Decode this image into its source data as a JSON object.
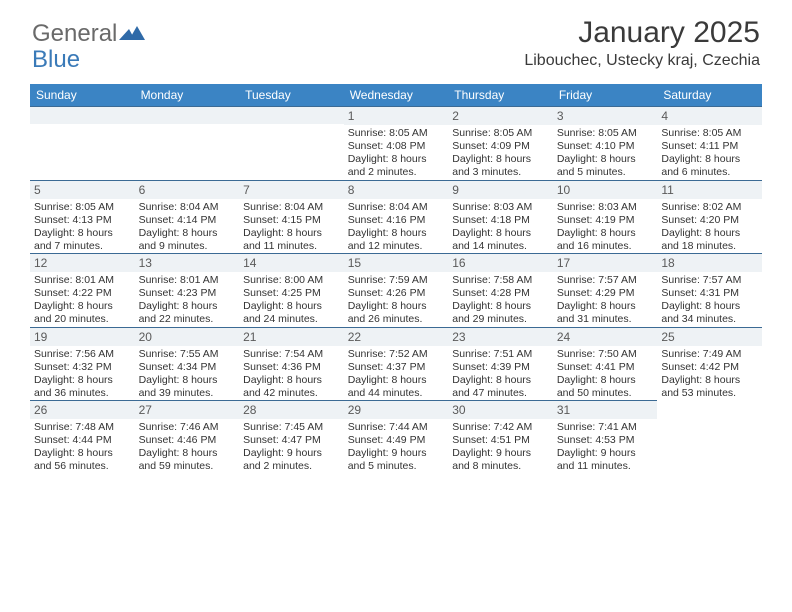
{
  "brand": {
    "part1": "General",
    "part2": "Blue"
  },
  "title": "January 2025",
  "location": "Libouchec, Ustecky kraj, Czechia",
  "colors": {
    "header_bg": "#3b84c4",
    "header_text": "#ffffff",
    "daybar_bg": "#eef2f5",
    "daybar_border": "#3b6a94",
    "body_text": "#333333",
    "logo_gray": "#6a6a6a",
    "logo_blue": "#3a7ab8"
  },
  "weekdays": [
    "Sunday",
    "Monday",
    "Tuesday",
    "Wednesday",
    "Thursday",
    "Friday",
    "Saturday"
  ],
  "weeks": [
    [
      null,
      null,
      null,
      {
        "n": "1",
        "sr": "8:05 AM",
        "ss": "4:08 PM",
        "dl": "8 hours and 2 minutes."
      },
      {
        "n": "2",
        "sr": "8:05 AM",
        "ss": "4:09 PM",
        "dl": "8 hours and 3 minutes."
      },
      {
        "n": "3",
        "sr": "8:05 AM",
        "ss": "4:10 PM",
        "dl": "8 hours and 5 minutes."
      },
      {
        "n": "4",
        "sr": "8:05 AM",
        "ss": "4:11 PM",
        "dl": "8 hours and 6 minutes."
      }
    ],
    [
      {
        "n": "5",
        "sr": "8:05 AM",
        "ss": "4:13 PM",
        "dl": "8 hours and 7 minutes."
      },
      {
        "n": "6",
        "sr": "8:04 AM",
        "ss": "4:14 PM",
        "dl": "8 hours and 9 minutes."
      },
      {
        "n": "7",
        "sr": "8:04 AM",
        "ss": "4:15 PM",
        "dl": "8 hours and 11 minutes."
      },
      {
        "n": "8",
        "sr": "8:04 AM",
        "ss": "4:16 PM",
        "dl": "8 hours and 12 minutes."
      },
      {
        "n": "9",
        "sr": "8:03 AM",
        "ss": "4:18 PM",
        "dl": "8 hours and 14 minutes."
      },
      {
        "n": "10",
        "sr": "8:03 AM",
        "ss": "4:19 PM",
        "dl": "8 hours and 16 minutes."
      },
      {
        "n": "11",
        "sr": "8:02 AM",
        "ss": "4:20 PM",
        "dl": "8 hours and 18 minutes."
      }
    ],
    [
      {
        "n": "12",
        "sr": "8:01 AM",
        "ss": "4:22 PM",
        "dl": "8 hours and 20 minutes."
      },
      {
        "n": "13",
        "sr": "8:01 AM",
        "ss": "4:23 PM",
        "dl": "8 hours and 22 minutes."
      },
      {
        "n": "14",
        "sr": "8:00 AM",
        "ss": "4:25 PM",
        "dl": "8 hours and 24 minutes."
      },
      {
        "n": "15",
        "sr": "7:59 AM",
        "ss": "4:26 PM",
        "dl": "8 hours and 26 minutes."
      },
      {
        "n": "16",
        "sr": "7:58 AM",
        "ss": "4:28 PM",
        "dl": "8 hours and 29 minutes."
      },
      {
        "n": "17",
        "sr": "7:57 AM",
        "ss": "4:29 PM",
        "dl": "8 hours and 31 minutes."
      },
      {
        "n": "18",
        "sr": "7:57 AM",
        "ss": "4:31 PM",
        "dl": "8 hours and 34 minutes."
      }
    ],
    [
      {
        "n": "19",
        "sr": "7:56 AM",
        "ss": "4:32 PM",
        "dl": "8 hours and 36 minutes."
      },
      {
        "n": "20",
        "sr": "7:55 AM",
        "ss": "4:34 PM",
        "dl": "8 hours and 39 minutes."
      },
      {
        "n": "21",
        "sr": "7:54 AM",
        "ss": "4:36 PM",
        "dl": "8 hours and 42 minutes."
      },
      {
        "n": "22",
        "sr": "7:52 AM",
        "ss": "4:37 PM",
        "dl": "8 hours and 44 minutes."
      },
      {
        "n": "23",
        "sr": "7:51 AM",
        "ss": "4:39 PM",
        "dl": "8 hours and 47 minutes."
      },
      {
        "n": "24",
        "sr": "7:50 AM",
        "ss": "4:41 PM",
        "dl": "8 hours and 50 minutes."
      },
      {
        "n": "25",
        "sr": "7:49 AM",
        "ss": "4:42 PM",
        "dl": "8 hours and 53 minutes."
      }
    ],
    [
      {
        "n": "26",
        "sr": "7:48 AM",
        "ss": "4:44 PM",
        "dl": "8 hours and 56 minutes."
      },
      {
        "n": "27",
        "sr": "7:46 AM",
        "ss": "4:46 PM",
        "dl": "8 hours and 59 minutes."
      },
      {
        "n": "28",
        "sr": "7:45 AM",
        "ss": "4:47 PM",
        "dl": "9 hours and 2 minutes."
      },
      {
        "n": "29",
        "sr": "7:44 AM",
        "ss": "4:49 PM",
        "dl": "9 hours and 5 minutes."
      },
      {
        "n": "30",
        "sr": "7:42 AM",
        "ss": "4:51 PM",
        "dl": "9 hours and 8 minutes."
      },
      {
        "n": "31",
        "sr": "7:41 AM",
        "ss": "4:53 PM",
        "dl": "9 hours and 11 minutes."
      },
      null
    ]
  ],
  "labels": {
    "sunrise": "Sunrise:",
    "sunset": "Sunset:",
    "daylight": "Daylight:"
  }
}
